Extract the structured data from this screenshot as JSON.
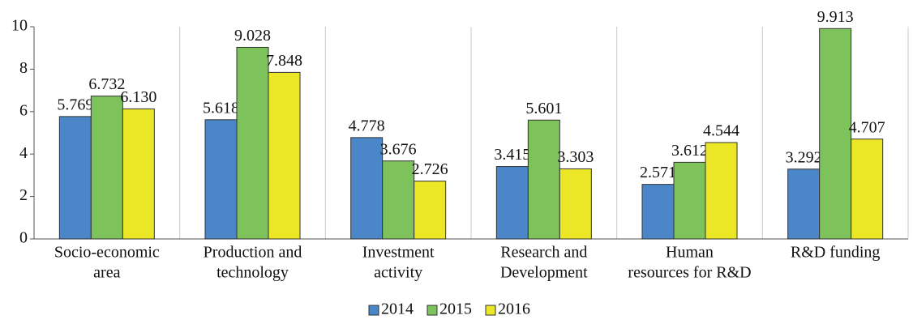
{
  "chart_data": {
    "type": "bar",
    "categories": [
      [
        "Socio-economic",
        "area"
      ],
      [
        "Production and",
        "technology"
      ],
      [
        "Investment",
        "activity"
      ],
      [
        "Research and",
        "Development"
      ],
      [
        "Human",
        "resources for R&D"
      ],
      [
        "R&D funding"
      ]
    ],
    "series": [
      {
        "name": "2014",
        "color": "#4a86c8",
        "values": [
          5.769,
          5.618,
          4.778,
          3.415,
          2.571,
          3.292
        ],
        "value_labels": [
          "5.769",
          "5.618",
          "4.778",
          "3.415",
          "2.571",
          "3.292"
        ]
      },
      {
        "name": "2015",
        "color": "#7dc25a",
        "values": [
          6.732,
          9.028,
          3.676,
          5.601,
          3.612,
          9.913
        ],
        "value_labels": [
          "6.732",
          "9.028",
          "3.676",
          "5.601",
          "3.612",
          "9.913"
        ]
      },
      {
        "name": "2016",
        "color": "#ebe626",
        "values": [
          6.13,
          7.848,
          2.726,
          3.303,
          4.544,
          4.707
        ],
        "value_labels": [
          "6.130",
          "7.848",
          "2.726",
          "3.303",
          "4.544",
          "4.707"
        ]
      }
    ],
    "ylim": [
      0,
      10
    ],
    "yticks": [
      0,
      2,
      4,
      6,
      8,
      10
    ],
    "legend": "bottom"
  }
}
